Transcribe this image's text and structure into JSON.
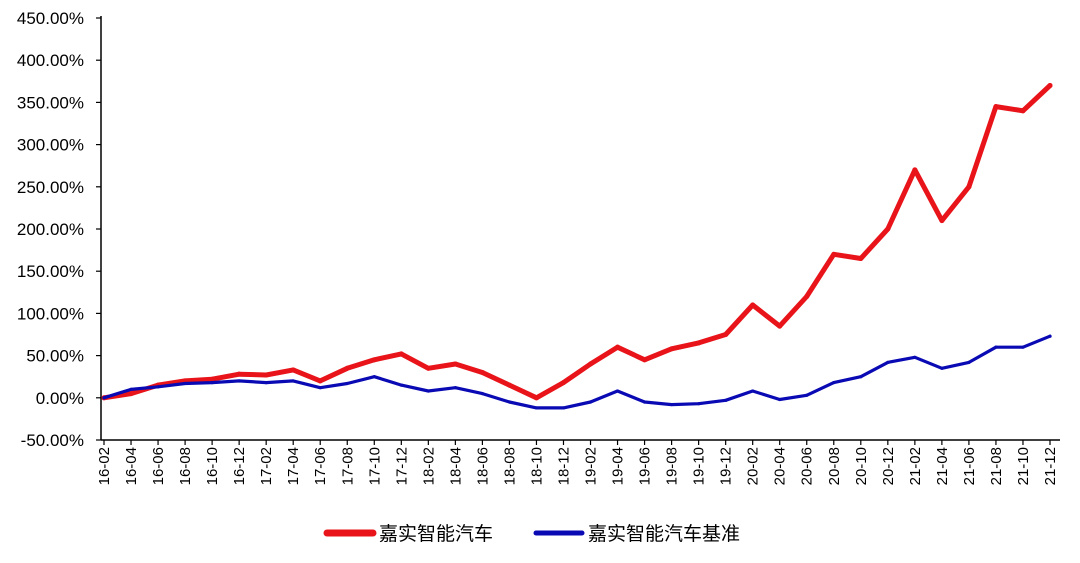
{
  "chart_data": {
    "type": "line",
    "title": "",
    "xlabel": "",
    "ylabel": "",
    "ylim": [
      -50,
      450
    ],
    "y_ticks": [
      "450.00%",
      "400.00%",
      "350.00%",
      "300.00%",
      "250.00%",
      "200.00%",
      "150.00%",
      "100.00%",
      "50.00%",
      "0.00%",
      "-50.00%"
    ],
    "x": [
      "16-02",
      "16-04",
      "16-06",
      "16-08",
      "16-10",
      "16-12",
      "17-02",
      "17-04",
      "17-06",
      "17-08",
      "17-10",
      "17-12",
      "18-02",
      "18-04",
      "18-06",
      "18-08",
      "18-10",
      "18-12",
      "19-02",
      "19-04",
      "19-06",
      "19-08",
      "19-10",
      "19-12",
      "20-02",
      "20-04",
      "20-06",
      "20-08",
      "20-10",
      "20-12",
      "21-02",
      "21-04",
      "21-06",
      "21-08",
      "21-10",
      "21-12"
    ],
    "grid": false,
    "legend_position": "bottom",
    "series": [
      {
        "name": "嘉实智能汽车",
        "color": "#E8141A",
        "values": [
          0,
          5,
          15,
          20,
          22,
          28,
          27,
          33,
          20,
          35,
          45,
          52,
          35,
          40,
          30,
          15,
          0,
          18,
          40,
          60,
          45,
          58,
          65,
          75,
          110,
          85,
          120,
          170,
          165,
          200,
          270,
          210,
          250,
          345,
          340,
          370
        ]
      },
      {
        "name": "嘉实智能汽车基准",
        "color": "#0A0AB4",
        "values": [
          0,
          10,
          13,
          17,
          18,
          20,
          18,
          20,
          12,
          17,
          25,
          15,
          8,
          12,
          5,
          -5,
          -12,
          -12,
          -5,
          8,
          -5,
          -8,
          -7,
          -3,
          8,
          -2,
          3,
          18,
          25,
          42,
          48,
          35,
          42,
          60,
          60,
          73
        ]
      }
    ]
  }
}
